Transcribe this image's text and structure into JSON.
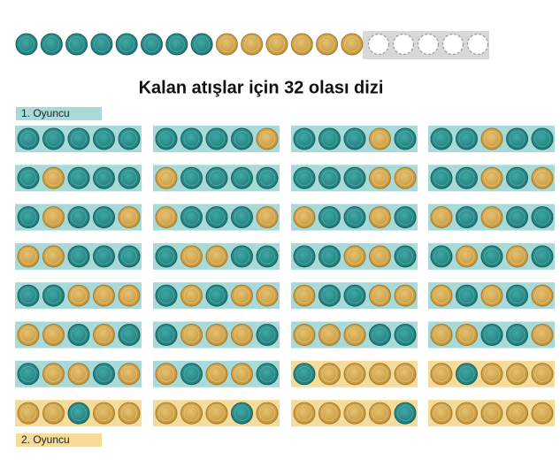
{
  "title": "Kalan atışlar için 32 olası dizi",
  "legend": {
    "player1": "1. Oyuncu",
    "player2": "2. Oyuncu"
  }
}
